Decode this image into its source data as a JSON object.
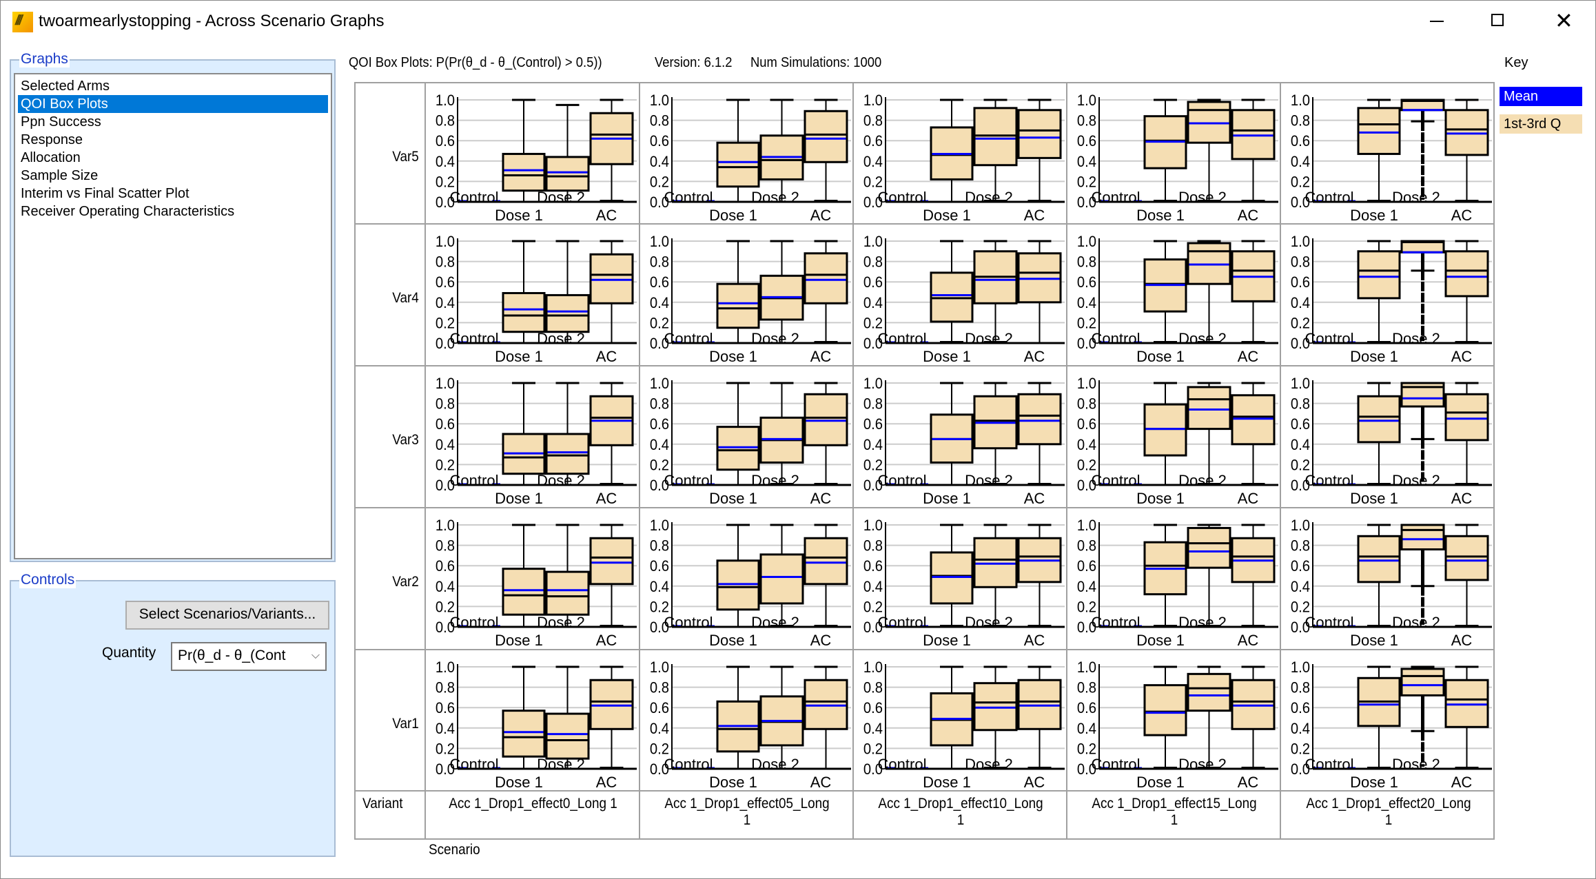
{
  "window": {
    "title": "twoarmearlystopping - Across Scenario Graphs",
    "icon": "app-logo-icon",
    "controls": {
      "minimize": "minimize-icon",
      "maximize": "maximize-icon",
      "close": "close-icon",
      "close_glyph": "✕"
    }
  },
  "graphs_panel": {
    "title": "Graphs",
    "items": [
      {
        "label": "Selected Arms",
        "selected": false
      },
      {
        "label": "QOI Box Plots",
        "selected": true
      },
      {
        "label": "Ppn Success",
        "selected": false
      },
      {
        "label": "Response",
        "selected": false
      },
      {
        "label": "Allocation",
        "selected": false
      },
      {
        "label": "Sample Size",
        "selected": false
      },
      {
        "label": "Interim vs Final Scatter Plot",
        "selected": false
      },
      {
        "label": "Receiver Operating Characteristics",
        "selected": false
      }
    ]
  },
  "controls_panel": {
    "title": "Controls",
    "select_button": "Select Scenarios/Variants...",
    "quantity_label": "Quantity",
    "quantity_value": "Pr(θ_d - θ_(Cont",
    "chevron": "⌵"
  },
  "header": {
    "plot_title": "QOI Box Plots: P(Pr(θ_d - θ_(Control) > 0.5))",
    "version": "Version: 6.1.2",
    "num_simulations": "Num Simulations: 1000"
  },
  "key": {
    "title": "Key",
    "items": [
      {
        "label": "Mean",
        "color": "#0000ff"
      },
      {
        "label": "1st-3rd Q",
        "color": "#f5deb3"
      }
    ]
  },
  "table": {
    "variant_header": "Variant",
    "scenario_label": "Scenario",
    "rows": [
      "Var5",
      "Var4",
      "Var3",
      "Var2",
      "Var1"
    ],
    "columns": [
      {
        "line1": "Acc 1_Drop1_effect0_Long 1",
        "line2": ""
      },
      {
        "line1": "Acc 1_Drop1_effect05_Long",
        "line2": "1"
      },
      {
        "line1": "Acc 1_Drop1_effect10_Long",
        "line2": "1"
      },
      {
        "line1": "Acc 1_Drop1_effect15_Long",
        "line2": "1"
      },
      {
        "line1": "Acc 1_Drop1_effect20_Long",
        "line2": "1"
      }
    ]
  },
  "chart_data": {
    "type": "box",
    "title": "QOI Box Plots: P(Pr(θ_d - θ_(Control) > 0.5))",
    "ylim": [
      0,
      1
    ],
    "yticks": [
      "0.0",
      "0.2",
      "0.4",
      "0.6",
      "0.8",
      "1.0"
    ],
    "categories": [
      "Control",
      "Dose 1",
      "Dose 2",
      "AC"
    ],
    "grid": true,
    "colors": {
      "box_fill": "#f5deb3",
      "mean": "#0000ff",
      "median": "#000000",
      "grid": "#cccccc"
    },
    "value_order": [
      "whisker_low",
      "q1",
      "median",
      "q3",
      "whisker_high",
      "mean"
    ],
    "panels": [
      [
        {
          "Control": [
            0,
            0,
            0,
            0,
            0,
            0
          ],
          "Dose 1": [
            0,
            0.11,
            0.26,
            0.47,
            1.0,
            0.31
          ],
          "Dose 2": [
            0,
            0.11,
            0.25,
            0.44,
            0.95,
            0.29
          ],
          "AC": [
            0.01,
            0.37,
            0.66,
            0.87,
            1.0,
            0.62
          ]
        },
        {
          "Control": [
            0,
            0,
            0,
            0,
            0,
            0
          ],
          "Dose 1": [
            0,
            0.15,
            0.34,
            0.58,
            1.0,
            0.39
          ],
          "Dose 2": [
            0,
            0.22,
            0.41,
            0.65,
            1.0,
            0.44
          ],
          "AC": [
            0.01,
            0.39,
            0.66,
            0.89,
            1.0,
            0.62
          ]
        },
        {
          "Control": [
            0,
            0,
            0,
            0,
            0,
            0
          ],
          "Dose 1": [
            0,
            0.22,
            0.46,
            0.73,
            1.0,
            0.47
          ],
          "Dose 2": [
            0.01,
            0.36,
            0.65,
            0.92,
            1.0,
            0.62
          ],
          "AC": [
            0.01,
            0.43,
            0.7,
            0.9,
            1.0,
            0.63
          ]
        },
        {
          "Control": [
            0,
            0,
            0,
            0,
            0,
            0
          ],
          "Dose 1": [
            0.01,
            0.33,
            0.6,
            0.84,
            1.0,
            0.59
          ],
          "Dose 2": [
            0.01,
            0.58,
            0.9,
            0.98,
            1.0,
            0.77
          ],
          "AC": [
            0.01,
            0.42,
            0.7,
            0.9,
            1.0,
            0.65
          ]
        },
        {
          "Control": [
            0,
            0,
            0,
            0,
            0,
            0
          ],
          "Dose 1": [
            0.01,
            0.47,
            0.76,
            0.92,
            1.0,
            0.68
          ],
          "Dose 2": [
            0.79,
            0.9,
            0.99,
            1.0,
            1.0,
            0.9
          ],
          "AC": [
            0.01,
            0.46,
            0.71,
            0.9,
            1.0,
            0.67
          ]
        }
      ],
      [
        {
          "Control": [
            0,
            0,
            0,
            0,
            0,
            0
          ],
          "Dose 1": [
            0,
            0.11,
            0.27,
            0.49,
            1.0,
            0.33
          ],
          "Dose 2": [
            0,
            0.11,
            0.27,
            0.47,
            1.0,
            0.31
          ],
          "AC": [
            0,
            0.39,
            0.67,
            0.87,
            1.0,
            0.62
          ]
        },
        {
          "Control": [
            0,
            0,
            0,
            0,
            0,
            0
          ],
          "Dose 1": [
            0,
            0.15,
            0.34,
            0.58,
            1.0,
            0.39
          ],
          "Dose 2": [
            0,
            0.23,
            0.44,
            0.66,
            1.0,
            0.45
          ],
          "AC": [
            0.01,
            0.39,
            0.67,
            0.88,
            1.0,
            0.62
          ]
        },
        {
          "Control": [
            0,
            0,
            0,
            0,
            0,
            0
          ],
          "Dose 1": [
            0.01,
            0.21,
            0.44,
            0.69,
            1.0,
            0.47
          ],
          "Dose 2": [
            0.01,
            0.39,
            0.65,
            0.9,
            1.0,
            0.62
          ],
          "AC": [
            0,
            0.4,
            0.69,
            0.88,
            1.0,
            0.63
          ]
        },
        {
          "Control": [
            0,
            0,
            0,
            0,
            0,
            0
          ],
          "Dose 1": [
            0.01,
            0.31,
            0.58,
            0.82,
            1.0,
            0.57
          ],
          "Dose 2": [
            0.01,
            0.58,
            0.9,
            0.98,
            1.0,
            0.77
          ],
          "AC": [
            0.01,
            0.41,
            0.71,
            0.9,
            1.0,
            0.65
          ]
        },
        {
          "Control": [
            0,
            0,
            0,
            0,
            0,
            0
          ],
          "Dose 1": [
            0.01,
            0.44,
            0.71,
            0.9,
            1.0,
            0.65
          ],
          "Dose 2": [
            0.71,
            0.89,
            0.99,
            1.0,
            1.0,
            0.89
          ],
          "AC": [
            0.01,
            0.46,
            0.71,
            0.9,
            1.0,
            0.65
          ]
        }
      ],
      [
        {
          "Control": [
            0,
            0,
            0,
            0,
            0,
            0
          ],
          "Dose 1": [
            0,
            0.11,
            0.27,
            0.5,
            1.0,
            0.31
          ],
          "Dose 2": [
            0,
            0.11,
            0.29,
            0.5,
            1.0,
            0.32
          ],
          "AC": [
            0.01,
            0.39,
            0.66,
            0.87,
            1.0,
            0.63
          ]
        },
        {
          "Control": [
            0,
            0,
            0,
            0,
            0,
            0
          ],
          "Dose 1": [
            0,
            0.15,
            0.34,
            0.57,
            1.0,
            0.37
          ],
          "Dose 2": [
            0.01,
            0.22,
            0.44,
            0.66,
            1.0,
            0.45
          ],
          "AC": [
            0.01,
            0.39,
            0.66,
            0.89,
            1.0,
            0.63
          ]
        },
        {
          "Control": [
            0,
            0,
            0,
            0,
            0,
            0
          ],
          "Dose 1": [
            0,
            0.22,
            0.45,
            0.69,
            1.0,
            0.45
          ],
          "Dose 2": [
            0.01,
            0.36,
            0.63,
            0.87,
            1.0,
            0.61
          ],
          "AC": [
            0.01,
            0.4,
            0.68,
            0.89,
            1.0,
            0.63
          ]
        },
        {
          "Control": [
            0,
            0,
            0,
            0,
            0,
            0
          ],
          "Dose 1": [
            0,
            0.29,
            0.55,
            0.79,
            1.0,
            0.55
          ],
          "Dose 2": [
            0.01,
            0.55,
            0.84,
            0.96,
            1.0,
            0.74
          ],
          "AC": [
            0.01,
            0.4,
            0.67,
            0.88,
            1.0,
            0.65
          ]
        },
        {
          "Control": [
            0,
            0,
            0,
            0,
            0,
            0
          ],
          "Dose 1": [
            0.01,
            0.42,
            0.67,
            0.87,
            1.0,
            0.63
          ],
          "Dose 2": [
            0.45,
            0.77,
            0.96,
            1.0,
            1.0,
            0.85
          ],
          "AC": [
            0.01,
            0.44,
            0.71,
            0.89,
            1.0,
            0.65
          ]
        }
      ],
      [
        {
          "Control": [
            0,
            0,
            0,
            0,
            0,
            0
          ],
          "Dose 1": [
            0,
            0.12,
            0.31,
            0.57,
            1.0,
            0.36
          ],
          "Dose 2": [
            0,
            0.12,
            0.3,
            0.54,
            1.0,
            0.36
          ],
          "AC": [
            0.01,
            0.42,
            0.68,
            0.87,
            1.0,
            0.63
          ]
        },
        {
          "Control": [
            0,
            0,
            0,
            0,
            0,
            0
          ],
          "Dose 1": [
            0,
            0.17,
            0.39,
            0.65,
            1.0,
            0.42
          ],
          "Dose 2": [
            0.01,
            0.23,
            0.49,
            0.71,
            1.0,
            0.49
          ],
          "AC": [
            0.01,
            0.42,
            0.68,
            0.87,
            1.0,
            0.63
          ]
        },
        {
          "Control": [
            0,
            0,
            0,
            0,
            0,
            0
          ],
          "Dose 1": [
            0.01,
            0.23,
            0.5,
            0.73,
            1.0,
            0.49
          ],
          "Dose 2": [
            0.01,
            0.39,
            0.66,
            0.87,
            1.0,
            0.62
          ],
          "AC": [
            0.01,
            0.44,
            0.69,
            0.87,
            1.0,
            0.65
          ]
        },
        {
          "Control": [
            0,
            0,
            0,
            0,
            0,
            0
          ],
          "Dose 1": [
            0.01,
            0.32,
            0.6,
            0.83,
            1.0,
            0.57
          ],
          "Dose 2": [
            0.01,
            0.58,
            0.82,
            0.97,
            1.0,
            0.74
          ],
          "AC": [
            0.01,
            0.44,
            0.69,
            0.87,
            1.0,
            0.65
          ]
        },
        {
          "Control": [
            0,
            0,
            0,
            0,
            0,
            0
          ],
          "Dose 1": [
            0.01,
            0.44,
            0.69,
            0.89,
            1.0,
            0.65
          ],
          "Dose 2": [
            0.4,
            0.76,
            0.95,
            1.0,
            1.0,
            0.86
          ],
          "AC": [
            0.01,
            0.46,
            0.69,
            0.89,
            1.0,
            0.65
          ]
        }
      ],
      [
        {
          "Control": [
            0,
            0,
            0,
            0,
            0,
            0
          ],
          "Dose 1": [
            0,
            0.12,
            0.31,
            0.57,
            1.0,
            0.36
          ],
          "Dose 2": [
            0,
            0.1,
            0.28,
            0.54,
            1.0,
            0.34
          ],
          "AC": [
            0.01,
            0.39,
            0.66,
            0.87,
            1.0,
            0.62
          ]
        },
        {
          "Control": [
            0,
            0,
            0,
            0,
            0,
            0
          ],
          "Dose 1": [
            0,
            0.17,
            0.39,
            0.66,
            1.0,
            0.42
          ],
          "Dose 2": [
            0,
            0.23,
            0.46,
            0.71,
            1.0,
            0.47
          ],
          "AC": [
            0,
            0.39,
            0.66,
            0.87,
            1.0,
            0.62
          ]
        },
        {
          "Control": [
            0,
            0,
            0,
            0,
            0,
            0
          ],
          "Dose 1": [
            0,
            0.23,
            0.48,
            0.74,
            1.0,
            0.49
          ],
          "Dose 2": [
            0.01,
            0.38,
            0.65,
            0.84,
            1.0,
            0.6
          ],
          "AC": [
            0.01,
            0.39,
            0.66,
            0.87,
            1.0,
            0.62
          ]
        },
        {
          "Control": [
            0,
            0,
            0,
            0,
            0,
            0
          ],
          "Dose 1": [
            0.01,
            0.33,
            0.56,
            0.82,
            1.0,
            0.55
          ],
          "Dose 2": [
            0.01,
            0.57,
            0.79,
            0.93,
            1.0,
            0.72
          ],
          "AC": [
            0.01,
            0.39,
            0.66,
            0.87,
            1.0,
            0.62
          ]
        },
        {
          "Control": [
            0,
            0,
            0,
            0,
            0,
            0
          ],
          "Dose 1": [
            0.01,
            0.42,
            0.66,
            0.89,
            1.0,
            0.63
          ],
          "Dose 2": [
            0.37,
            0.72,
            0.91,
            0.98,
            1.0,
            0.82
          ],
          "AC": [
            0.01,
            0.41,
            0.68,
            0.87,
            1.0,
            0.63
          ]
        }
      ]
    ]
  }
}
